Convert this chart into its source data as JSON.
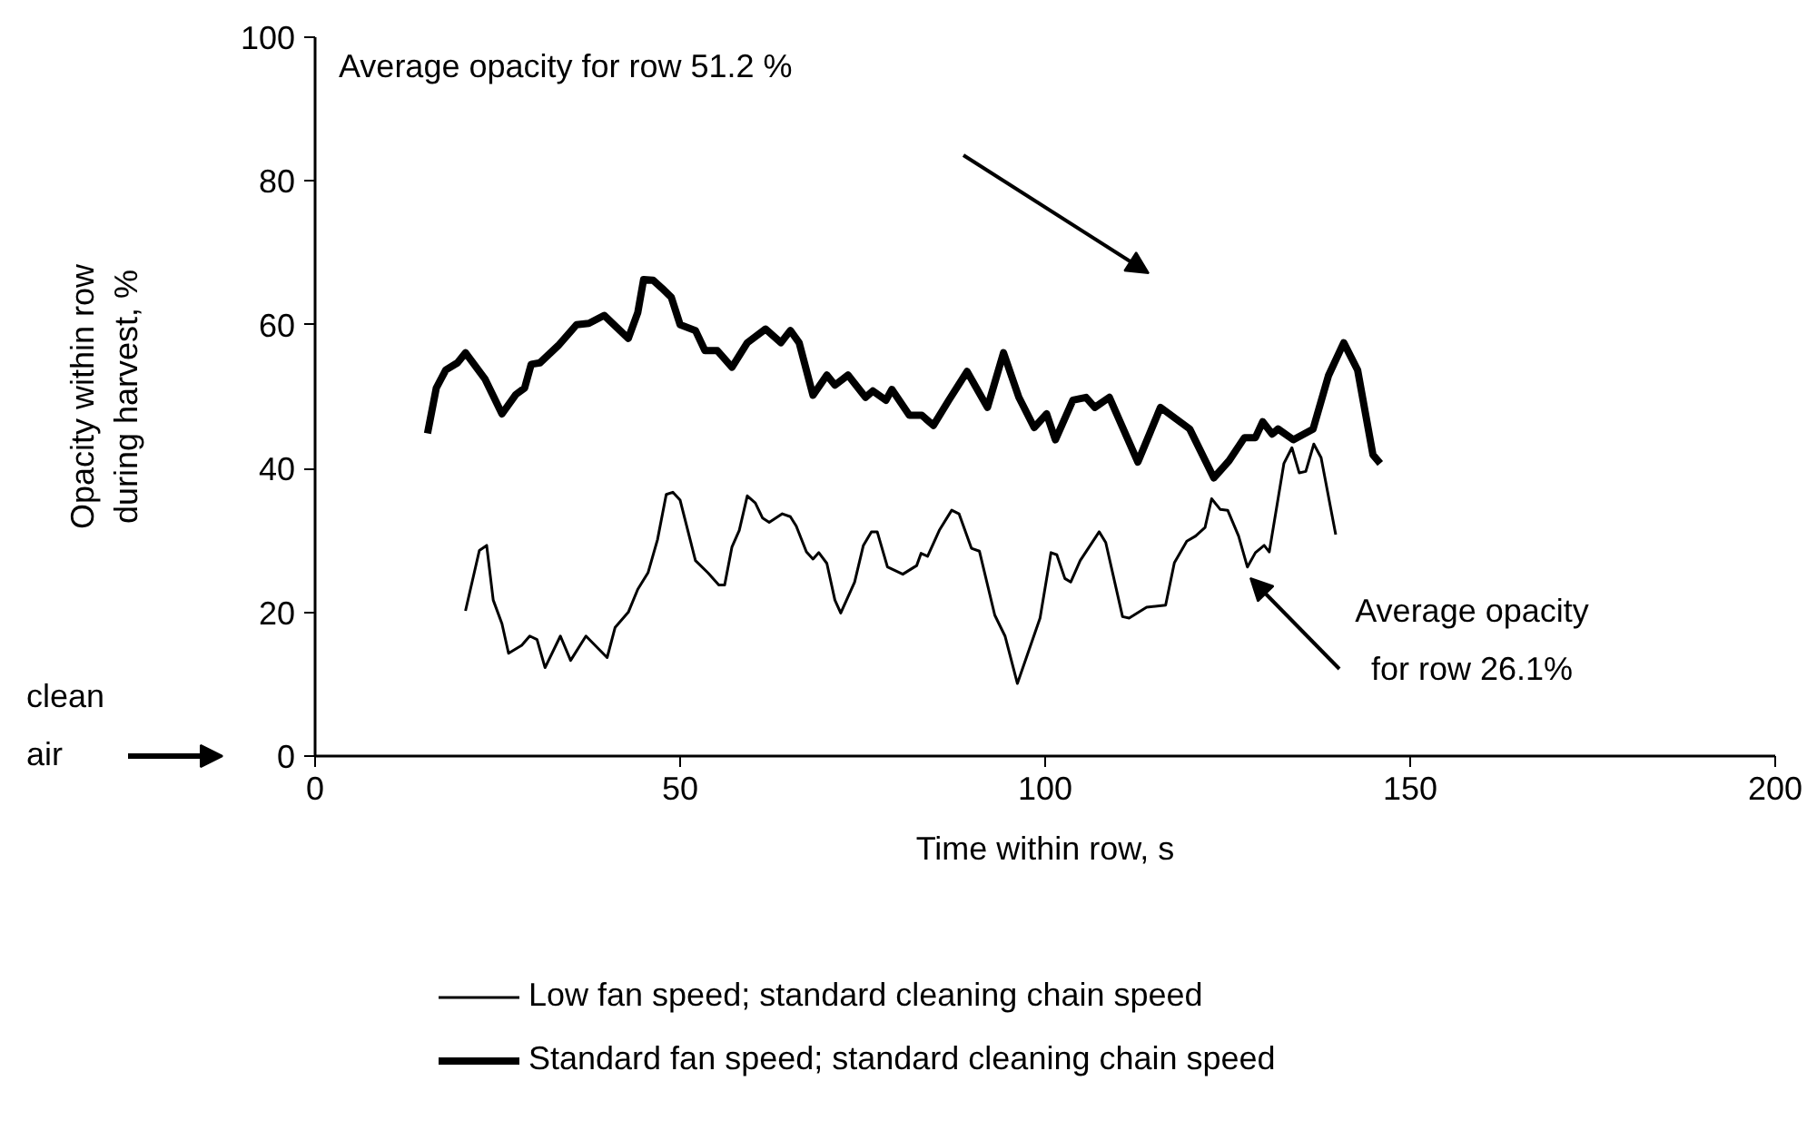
{
  "chart_data": {
    "type": "line",
    "xlabel": "Time within row, s",
    "ylabel": "Opacity within row\nduring harvest, %",
    "xlim": [
      0,
      200
    ],
    "xticks": [
      0,
      50,
      100,
      150,
      200
    ],
    "ylim": [
      0,
      100
    ],
    "yticks": [
      0,
      20,
      40,
      60,
      80,
      100
    ],
    "grid": false,
    "legend": "bottom",
    "marker": "none",
    "line_style": "solid",
    "series": [
      {
        "name": "Low fan speed; standard cleaning chain speed",
        "color": "#000000",
        "x": [
          20.6,
          22.5,
          23.5,
          24.4,
          25.6,
          26.5,
          28.3,
          29.4,
          30.4,
          31.5,
          33.6,
          35.0,
          37.1,
          40.0,
          41.1,
          42.9,
          44.2,
          45.6,
          46.9,
          48.1,
          49.0,
          50.0,
          52.1,
          53.8,
          55.3,
          56.1,
          57.1,
          58.1,
          59.2,
          60.3,
          61.3,
          62.2,
          64.0,
          65.1,
          65.9,
          67.3,
          68.2,
          69.0,
          70.1,
          71.2,
          72.0,
          73.9,
          75.1,
          76.2,
          77.0,
          78.4,
          80.5,
          82.4,
          83.0,
          83.9,
          85.5,
          87.2,
          88.2,
          89.9,
          91.0,
          93.1,
          94.5,
          96.2,
          99.3,
          100.8,
          101.6,
          102.7,
          103.5,
          104.8,
          107.4,
          108.3,
          110.6,
          111.5,
          113.9,
          116.5,
          117.7,
          119.4,
          120.6,
          121.9,
          122.8,
          124.0,
          125.0,
          126.5,
          127.7,
          128.8,
          130.0,
          130.7,
          132.7,
          133.8,
          134.8,
          135.7,
          136.8,
          137.8,
          139.8
        ],
        "values": [
          20.2,
          28.6,
          29.3,
          21.7,
          18.4,
          14.3,
          15.4,
          16.7,
          16.2,
          12.3,
          16.7,
          13.3,
          16.7,
          13.7,
          17.9,
          20.0,
          23.2,
          25.5,
          30.1,
          36.4,
          36.7,
          35.6,
          27.2,
          25.5,
          23.8,
          23.8,
          29.1,
          31.4,
          36.2,
          35.2,
          33.1,
          32.5,
          33.7,
          33.3,
          32.0,
          28.4,
          27.4,
          28.3,
          26.8,
          21.7,
          19.9,
          24.2,
          29.3,
          31.2,
          31.2,
          26.3,
          25.3,
          26.5,
          28.2,
          27.8,
          31.4,
          34.2,
          33.7,
          28.9,
          28.5,
          19.6,
          16.7,
          10.1,
          19.2,
          28.3,
          28.0,
          24.7,
          24.2,
          27.2,
          31.2,
          29.7,
          19.4,
          19.2,
          20.7,
          21.0,
          26.9,
          29.9,
          30.6,
          31.8,
          35.8,
          34.3,
          34.2,
          30.6,
          26.3,
          28.3,
          29.3,
          28.4,
          40.7,
          42.9,
          39.4,
          39.6,
          43.4,
          41.5,
          30.8
        ]
      },
      {
        "name": "Standard fan speed; standard cleaning chain speed",
        "color": "#000000",
        "x": [
          15.4,
          16.6,
          17.9,
          19.5,
          20.6,
          23.3,
          25.6,
          27.5,
          28.7,
          29.6,
          30.8,
          33.3,
          35.8,
          37.5,
          39.6,
          42.9,
          44.2,
          45.0,
          46.3,
          47.5,
          48.8,
          50.0,
          52.1,
          53.4,
          55.1,
          57.1,
          59.2,
          61.7,
          63.8,
          65.1,
          66.3,
          68.2,
          70.1,
          71.2,
          73.0,
          75.4,
          76.4,
          78.2,
          79.0,
          81.4,
          83.1,
          84.7,
          86.8,
          89.3,
          92.1,
          94.3,
          96.4,
          98.5,
          100.2,
          101.4,
          103.8,
          105.6,
          106.8,
          108.8,
          112.7,
          115.8,
          119.8,
          123.1,
          125.2,
          127.3,
          128.8,
          129.8,
          131.1,
          131.9,
          134.0,
          136.7,
          138.8,
          140.9,
          142.8,
          144.9,
          145.9
        ],
        "values": [
          44.9,
          51.2,
          53.7,
          54.7,
          56.1,
          52.4,
          47.6,
          50.3,
          51.2,
          54.5,
          54.7,
          57.1,
          60.0,
          60.2,
          61.3,
          58.1,
          61.7,
          66.3,
          66.2,
          65.1,
          63.8,
          60.0,
          59.2,
          56.4,
          56.4,
          54.1,
          57.5,
          59.4,
          57.5,
          59.2,
          57.5,
          50.2,
          53.0,
          51.6,
          53.0,
          49.9,
          50.8,
          49.5,
          51.0,
          47.4,
          47.4,
          46.0,
          49.5,
          53.5,
          48.5,
          56.1,
          49.9,
          45.7,
          47.6,
          44.0,
          49.5,
          49.9,
          48.5,
          49.9,
          40.9,
          48.5,
          45.5,
          38.7,
          41.1,
          44.3,
          44.3,
          46.5,
          44.8,
          45.5,
          44.0,
          45.5,
          52.9,
          57.5,
          53.7,
          41.9,
          40.7
        ]
      }
    ],
    "annotations": [
      "Average opacity for row 51.2 %",
      "Average opacity\nfor row 26.1%",
      "clean\nair"
    ]
  }
}
